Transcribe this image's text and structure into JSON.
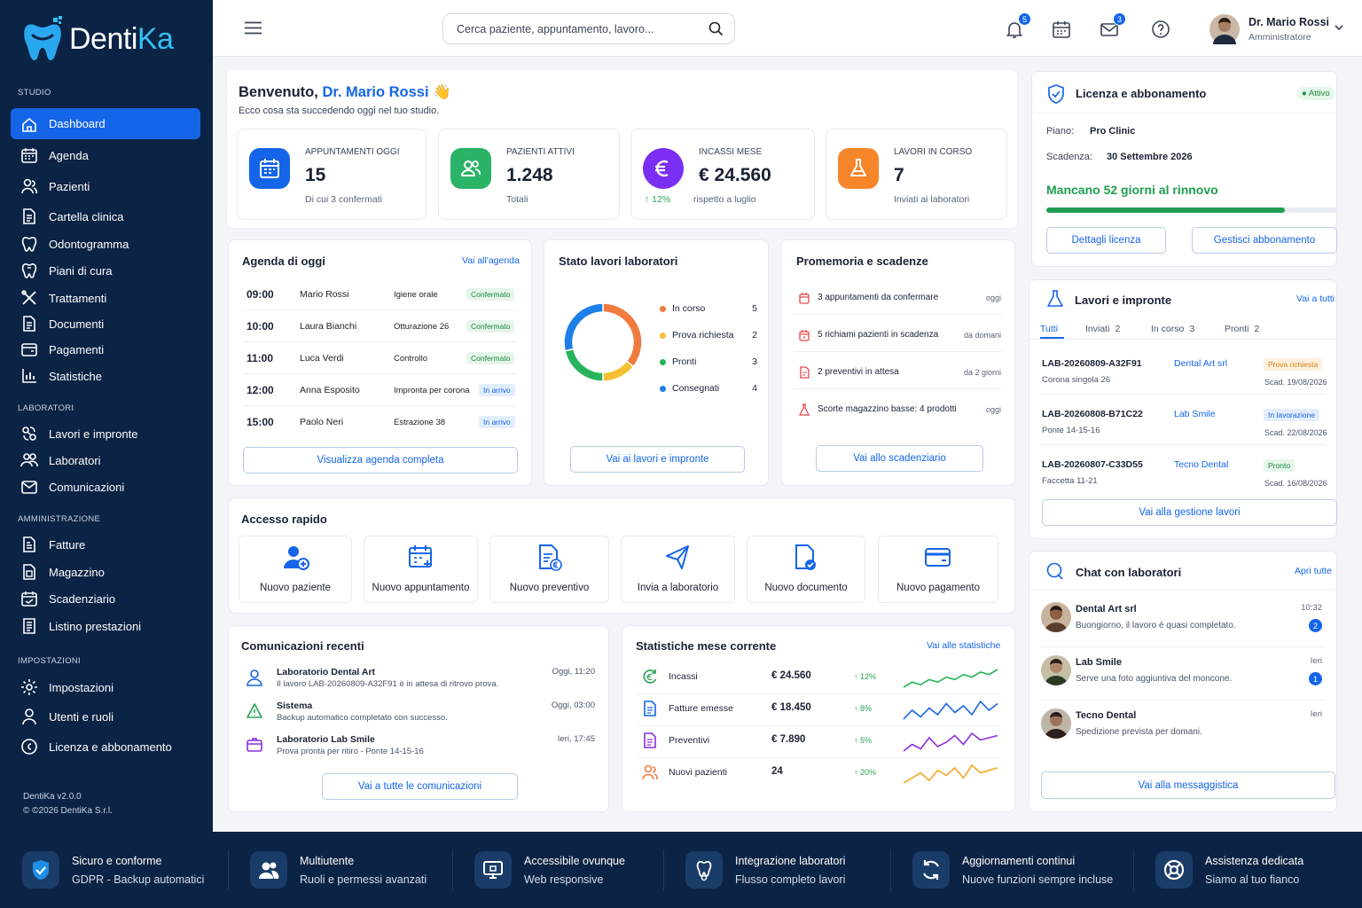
{
  "brand": {
    "name_a": "Denti",
    "name_b": "Ka",
    "version": "DentiKa v2.0.0",
    "copyright": "© ©2026 DentiKa S.r.l."
  },
  "sidebar": {
    "sections": [
      "STUDIO",
      "LABORATORI",
      "AMMINISTRAZIONE",
      "IMPOSTAZIONI"
    ],
    "items": [
      {
        "label": "Dashboard",
        "icon": "home-icon"
      },
      {
        "label": "Agenda",
        "icon": "calendar-icon"
      },
      {
        "label": "Pazienti",
        "icon": "users-icon"
      },
      {
        "label": "Cartella clinica",
        "icon": "document-icon"
      },
      {
        "label": "Odontogramma",
        "icon": "tooth-icon"
      },
      {
        "label": "Piani di cura",
        "icon": "tooth-plan-icon"
      },
      {
        "label": "Trattamenti",
        "icon": "tools-icon"
      },
      {
        "label": "Documenti",
        "icon": "document-icon"
      },
      {
        "label": "Pagamenti",
        "icon": "wallet-icon"
      },
      {
        "label": "Statistiche",
        "icon": "chart-icon"
      },
      {
        "label": "Lavori e impronte",
        "icon": "lab-icon"
      },
      {
        "label": "Laboratori",
        "icon": "team-icon"
      },
      {
        "label": "Comunicazioni",
        "icon": "mail-icon"
      },
      {
        "label": "Fatture",
        "icon": "invoice-icon"
      },
      {
        "label": "Magazzino",
        "icon": "box-icon"
      },
      {
        "label": "Scadenziario",
        "icon": "calendar-check-icon"
      },
      {
        "label": "Listino prestazioni",
        "icon": "list-icon"
      },
      {
        "label": "Impostazioni",
        "icon": "gear-icon"
      },
      {
        "label": "Utenti e ruoli",
        "icon": "user-icon"
      },
      {
        "label": "Licenza e abbonamento",
        "icon": "license-icon"
      }
    ]
  },
  "topbar": {
    "search_placeholder": "Cerca paziente, appuntamento, lavoro...",
    "notif_count": "5",
    "mail_count": "3",
    "user_name": "Dr. Mario Rossi",
    "user_role": "Amministratore"
  },
  "welcome": {
    "prefix": "Benvenuto, ",
    "name": "Dr. Mario Rossi",
    "emoji": "👋",
    "subtitle": "Ecco cosa sta succedendo oggi nel tuo studio."
  },
  "kpis": [
    {
      "label": "APPUNTAMENTI OGGI",
      "value": "15",
      "sub": "Di cui 3 confermati",
      "color": "#1565e8"
    },
    {
      "label": "PAZIENTI ATTIVI",
      "value": "1.248",
      "sub": "Totali",
      "color": "#2bb368"
    },
    {
      "label": "INCASSI MESE",
      "value": "€ 24.560",
      "trend": "↑ 12%",
      "sub": "rispetto a luglio",
      "color": "#7b2ff2"
    },
    {
      "label": "LAVORI IN CORSO",
      "value": "7",
      "sub": "Inviati ai laboratori",
      "color": "#f7862a"
    }
  ],
  "agenda": {
    "title": "Agenda di oggi",
    "link": "Vai all'agenda",
    "rows": [
      {
        "time": "09:00",
        "patient": "Mario Rossi",
        "treatment": "Igiene orale",
        "status": "Confermato",
        "tone": "green"
      },
      {
        "time": "10:00",
        "patient": "Laura Bianchi",
        "treatment": "Otturazione 26",
        "status": "Confermato",
        "tone": "green"
      },
      {
        "time": "11:00",
        "patient": "Luca Verdi",
        "treatment": "Controllo",
        "status": "Confermato",
        "tone": "green"
      },
      {
        "time": "12:00",
        "patient": "Anna Esposito",
        "treatment": "Impronta per corona",
        "status": "In arrivo",
        "tone": "blue"
      },
      {
        "time": "15:00",
        "patient": "Paolo Neri",
        "treatment": "Estrazione 38",
        "status": "In arrivo",
        "tone": "blue"
      }
    ],
    "button": "Visualizza agenda completa"
  },
  "chart_data": {
    "type": "pie",
    "title": "Stato lavori laboratori",
    "categories": [
      "In corso",
      "Prova richiesta",
      "Pronti",
      "Consegnati"
    ],
    "values": [
      5,
      2,
      3,
      4
    ],
    "colors": [
      "#f07b3f",
      "#f6c033",
      "#27b35c",
      "#1f7fe8"
    ],
    "button": "Vai ai lavori e impronte"
  },
  "reminders": {
    "title": "Promemoria e scadenze",
    "rows": [
      {
        "text": "3 appuntamenti da confermare",
        "when": "oggi"
      },
      {
        "text": "5 richiami pazienti in scadenza",
        "when": "da domani"
      },
      {
        "text": "2 preventivi in attesa",
        "when": "da 2 giorni"
      },
      {
        "text": "Scorte magazzino basse: 4 prodotti",
        "when": "oggi"
      }
    ],
    "button": "Vai allo scadenziario"
  },
  "quick": {
    "title": "Accesso rapido",
    "items": [
      "Nuovo paziente",
      "Nuovo appuntamento",
      "Nuovo preventivo",
      "Invia a laboratorio",
      "Nuovo documento",
      "Nuovo pagamento"
    ]
  },
  "comms": {
    "title": "Comunicazioni recenti",
    "rows": [
      {
        "from": "Laboratorio Dental Art",
        "msg": "Il lavoro LAB-20260809-A32F91 è in attesa di ritrovo prova.",
        "time": "Oggi, 11:20"
      },
      {
        "from": "Sistema",
        "msg": "Backup automatico completato con successo.",
        "time": "Oggi, 03:00"
      },
      {
        "from": "Laboratorio Lab Smile",
        "msg": "Prova pronta per ritiro - Ponte 14-15-16",
        "time": "Ieri, 17:45"
      }
    ],
    "button": "Vai a tutte le comunicazioni"
  },
  "stats": {
    "title": "Statistiche mese corrente",
    "link": "Vai alle statistiche",
    "rows": [
      {
        "label": "Incassi",
        "value": "€ 24.560",
        "trend": "↑ 12%",
        "color": "#27b35c",
        "spark": [
          5,
          7,
          6,
          8,
          7,
          9,
          8,
          10,
          9,
          11,
          10,
          12
        ]
      },
      {
        "label": "Fatture emesse",
        "value": "€ 18.450",
        "trend": "↑ 8%",
        "color": "#1565e8",
        "spark": [
          4,
          8,
          5,
          9,
          6,
          11,
          7,
          10,
          6,
          12,
          8,
          11
        ]
      },
      {
        "label": "Preventivi",
        "value": "€ 7.890",
        "trend": "↑ 5%",
        "color": "#8a2fe0",
        "spark": [
          3,
          6,
          4,
          9,
          5,
          7,
          10,
          6,
          11,
          8,
          9,
          10
        ]
      },
      {
        "label": "Nuovi pazienti",
        "value": "24",
        "trend": "↑ 20%",
        "color": "#f5a623",
        "spark": [
          3,
          5,
          7,
          4,
          8,
          6,
          9,
          5,
          10,
          7,
          8,
          9
        ]
      }
    ]
  },
  "license": {
    "title": "Licenza e abbonamento",
    "status": "Attivo",
    "plan_label": "Piano:",
    "plan": "Pro Clinic",
    "expiry_label": "Scadenza:",
    "expiry": "30 Settembre 2026",
    "renewal": "Mancano 52 giorni al rinnovo",
    "progress": 0.82,
    "btn1": "Dettagli licenza",
    "btn2": "Gestisci abbonamento"
  },
  "works": {
    "title": "Lavori e impronte",
    "link": "Vai a tutti",
    "tabs": [
      {
        "label": "Tutti",
        "count": ""
      },
      {
        "label": "Inviati",
        "count": "2"
      },
      {
        "label": "In corso",
        "count": "3"
      },
      {
        "label": "Pronti",
        "count": "2"
      }
    ],
    "rows": [
      {
        "code": "LAB-20260809-A32F91",
        "lab": "Dental Art srl",
        "item": "Corona singola 26",
        "status": "Prova richiesta",
        "tone": "orange",
        "due": "Scad. 19/08/2026"
      },
      {
        "code": "LAB-20260808-B71C22",
        "lab": "Lab Smile",
        "item": "Ponte 14-15-16",
        "status": "In lavorazione",
        "tone": "blue",
        "due": "Scad. 22/08/2026"
      },
      {
        "code": "LAB-20260807-C33D55",
        "lab": "Tecno Dental",
        "item": "Faccetta 11-21",
        "status": "Pronto",
        "tone": "green",
        "due": "Scad. 16/08/2026"
      }
    ],
    "button": "Vai alla gestione lavori"
  },
  "chat": {
    "title": "Chat con laboratori",
    "link": "Apri tutte",
    "rows": [
      {
        "name": "Dental Art srl",
        "msg": "Buongiorno, il lavoro è quasi completato.",
        "time": "10:32",
        "unread": "2"
      },
      {
        "name": "Lab Smile",
        "msg": "Serve una foto aggiuntiva del moncone.",
        "time": "Ieri",
        "unread": "1"
      },
      {
        "name": "Tecno Dental",
        "msg": "Spedizione prevista per domani.",
        "time": "Ieri",
        "unread": ""
      }
    ],
    "button": "Vai alla messaggistica"
  },
  "footer": [
    {
      "title": "Sicuro e conforme",
      "sub": "GDPR - Backup automatici",
      "icon": "shield-check-icon"
    },
    {
      "title": "Multiutente",
      "sub": "Ruoli e permessi avanzati",
      "icon": "users-icon"
    },
    {
      "title": "Accessibile ovunque",
      "sub": "Web responsive",
      "icon": "monitor-icon"
    },
    {
      "title": "Integrazione laboratori",
      "sub": "Flusso completo lavori",
      "icon": "tooth-gear-icon"
    },
    {
      "title": "Aggiornamenti continui",
      "sub": "Nuove funzioni sempre incluse",
      "icon": "refresh-icon"
    },
    {
      "title": "Assistenza dedicata",
      "sub": "Siamo al tuo fianco",
      "icon": "lifebuoy-icon"
    }
  ]
}
